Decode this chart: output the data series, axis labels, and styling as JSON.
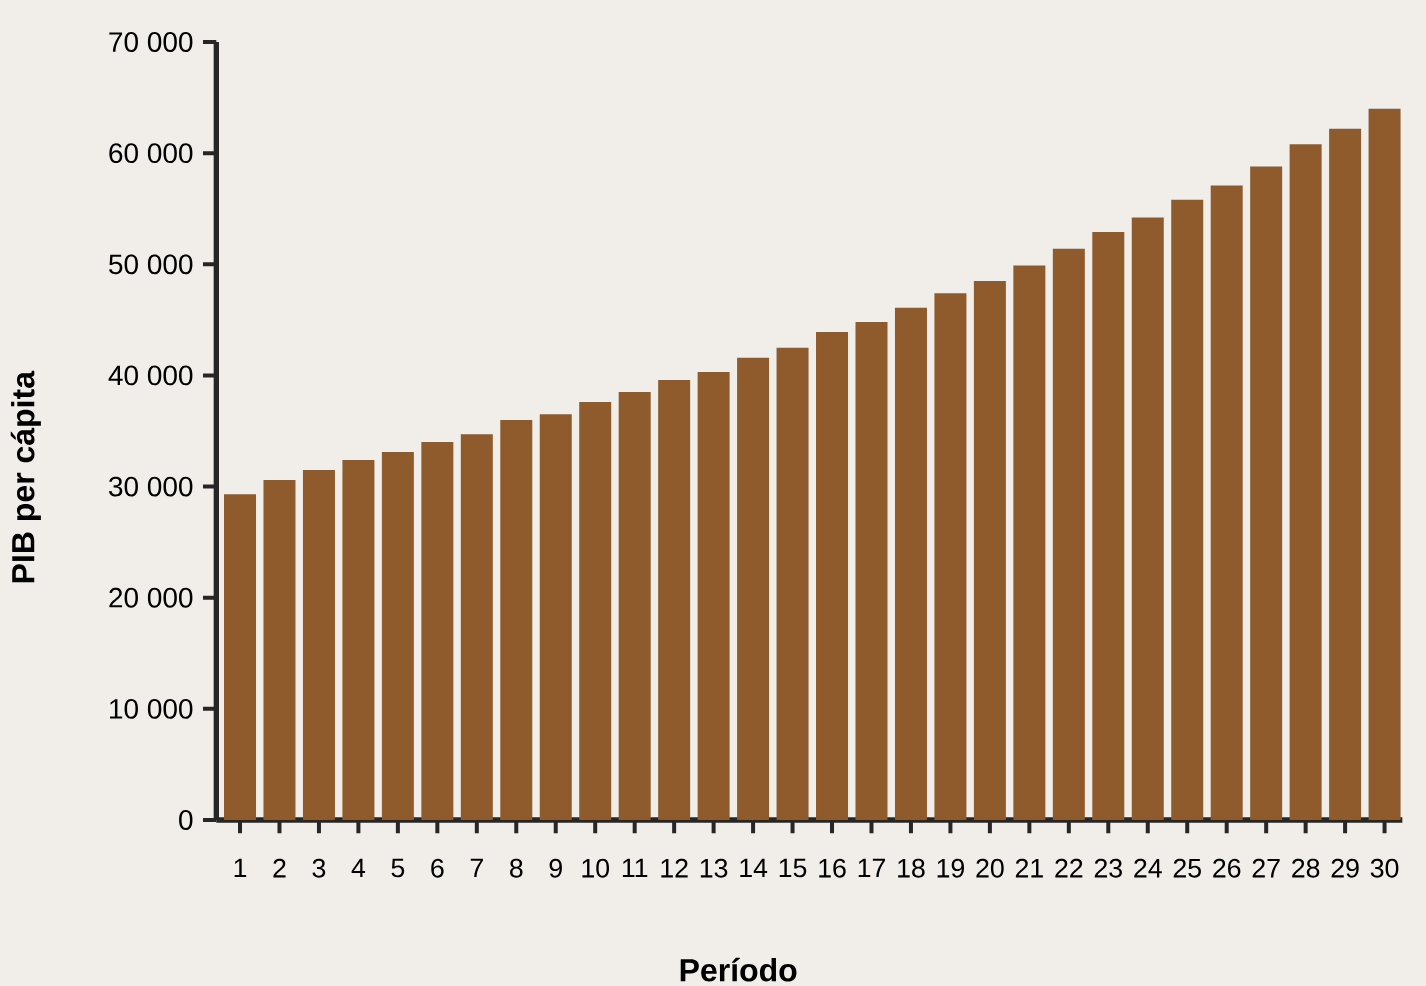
{
  "chart_data": {
    "type": "bar",
    "xlabel": "Período",
    "ylabel": "PIB  per cápita",
    "categories": [
      "1",
      "2",
      "3",
      "4",
      "5",
      "6",
      "7",
      "8",
      "9",
      "10",
      "11",
      "12",
      "13",
      "14",
      "15",
      "16",
      "17",
      "18",
      "19",
      "20",
      "21",
      "22",
      "23",
      "24",
      "25",
      "26",
      "27",
      "28",
      "29",
      "30"
    ],
    "values": [
      29300,
      30600,
      31500,
      32400,
      33100,
      34000,
      34700,
      36000,
      36500,
      37600,
      38500,
      39600,
      40300,
      41600,
      42500,
      43900,
      44800,
      46100,
      47400,
      48500,
      49900,
      51400,
      52900,
      54200,
      55800,
      57100,
      58800,
      60800,
      62200,
      64000
    ],
    "color": "#8f5a2c",
    "ylim": [
      0,
      70000
    ],
    "yticks": [
      0,
      {
        "value": 10000,
        "label": "10 000"
      },
      {
        "value": 20000,
        "label": "20 000"
      },
      {
        "value": 30000,
        "label": "30 000"
      },
      {
        "value": 40000,
        "label": "40 000"
      },
      {
        "value": 50000,
        "label": "50 000"
      },
      {
        "value": 60000,
        "label": "60 000"
      },
      {
        "value": 70000,
        "label": "70 000"
      }
    ],
    "grid": false
  }
}
